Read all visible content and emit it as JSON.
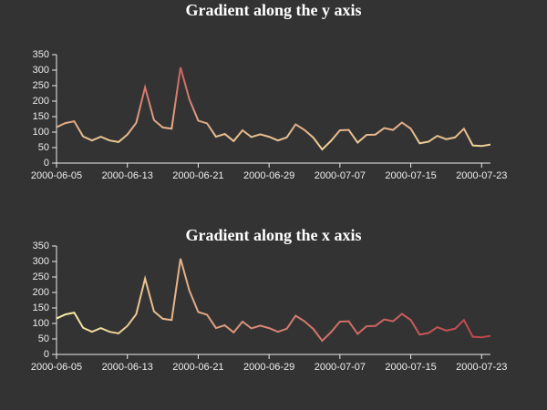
{
  "chart_data": [
    {
      "type": "line",
      "title": "Gradient along the y axis",
      "categories": [
        "2000-06-05",
        null,
        null,
        null,
        null,
        null,
        null,
        null,
        "2000-06-13",
        null,
        null,
        null,
        null,
        null,
        null,
        null,
        "2000-06-21",
        null,
        null,
        null,
        null,
        null,
        null,
        null,
        "2000-06-29",
        null,
        null,
        null,
        null,
        null,
        null,
        null,
        "2000-07-07",
        null,
        null,
        null,
        null,
        null,
        null,
        null,
        "2000-07-15",
        null,
        null,
        null,
        null,
        null,
        null,
        null,
        "2000-07-23",
        null
      ],
      "values": [
        116,
        129,
        135,
        86,
        73,
        85,
        73,
        68,
        92,
        130,
        245,
        139,
        115,
        111,
        309,
        206,
        137,
        128,
        85,
        94,
        71,
        106,
        84,
        93,
        85,
        73,
        83,
        125,
        107,
        82,
        44,
        72,
        106,
        107,
        66,
        91,
        92,
        113,
        107,
        131,
        111,
        64,
        69,
        88,
        77,
        83,
        111,
        57,
        55,
        60
      ],
      "ylim": [
        0,
        350
      ],
      "yticks": [
        0,
        50,
        100,
        150,
        200,
        250,
        300,
        350
      ],
      "gradient": {
        "axis": "y",
        "range": [
          0,
          400
        ],
        "colors": [
          "#f6efa6",
          "#d88273",
          "#bf444c"
        ]
      }
    },
    {
      "type": "line",
      "title": "Gradient along the x axis",
      "categories": [
        "2000-06-05",
        null,
        null,
        null,
        null,
        null,
        null,
        null,
        "2000-06-13",
        null,
        null,
        null,
        null,
        null,
        null,
        null,
        "2000-06-21",
        null,
        null,
        null,
        null,
        null,
        null,
        null,
        "2000-06-29",
        null,
        null,
        null,
        null,
        null,
        null,
        null,
        "2000-07-07",
        null,
        null,
        null,
        null,
        null,
        null,
        null,
        "2000-07-15",
        null,
        null,
        null,
        null,
        null,
        null,
        null,
        "2000-07-23",
        null
      ],
      "values": [
        116,
        129,
        135,
        86,
        73,
        85,
        73,
        68,
        92,
        130,
        245,
        139,
        115,
        111,
        309,
        206,
        137,
        128,
        85,
        94,
        71,
        106,
        84,
        93,
        85,
        73,
        83,
        125,
        107,
        82,
        44,
        72,
        106,
        107,
        66,
        91,
        92,
        113,
        107,
        131,
        111,
        64,
        69,
        88,
        77,
        83,
        111,
        57,
        55,
        60
      ],
      "ylim": [
        0,
        350
      ],
      "yticks": [
        0,
        50,
        100,
        150,
        200,
        250,
        300,
        350
      ],
      "gradient": {
        "axis": "x",
        "colors": [
          "#f6efa6",
          "#d88273",
          "#bf444c"
        ]
      }
    }
  ]
}
